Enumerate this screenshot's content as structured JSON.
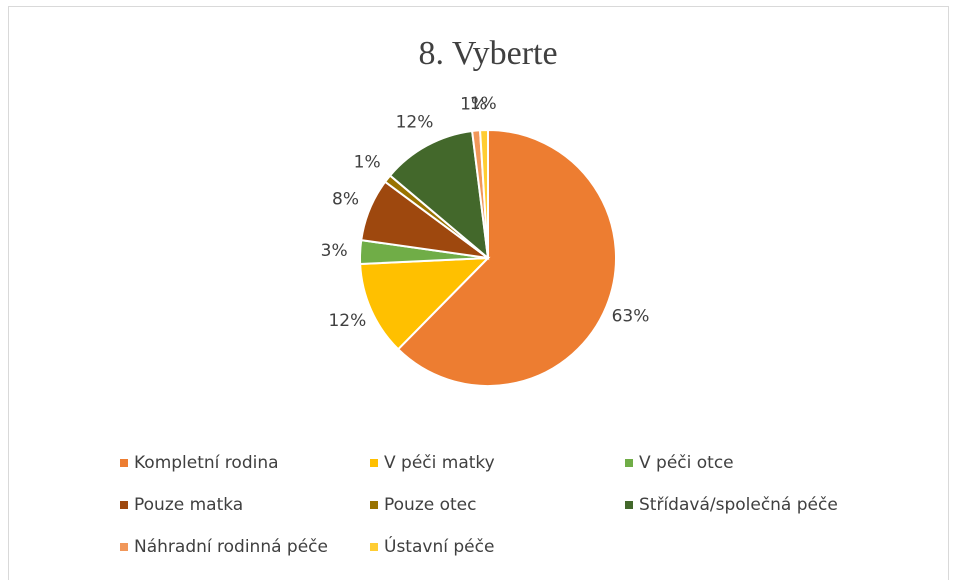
{
  "chart_data": {
    "type": "pie",
    "title": "8. Vyberte",
    "categories": [
      "Kompletní rodina",
      "V péči matky",
      "V péči otce",
      "Pouze matka",
      "Pouze otec",
      "Střídavá/společná péče",
      "Náhradní rodinná péče",
      "Ústavní péče"
    ],
    "values": [
      63,
      12,
      3,
      8,
      1,
      12,
      1,
      1
    ],
    "value_labels": [
      "63%",
      "12%",
      "3%",
      "8%",
      "1%",
      "12%",
      "1%",
      "1%"
    ],
    "colors": [
      "#ED7D31",
      "#FFC000",
      "#70AD47",
      "#9E480E",
      "#997300",
      "#43682B",
      "#F1975A",
      "#FFCD33"
    ],
    "legend": "bottom"
  }
}
